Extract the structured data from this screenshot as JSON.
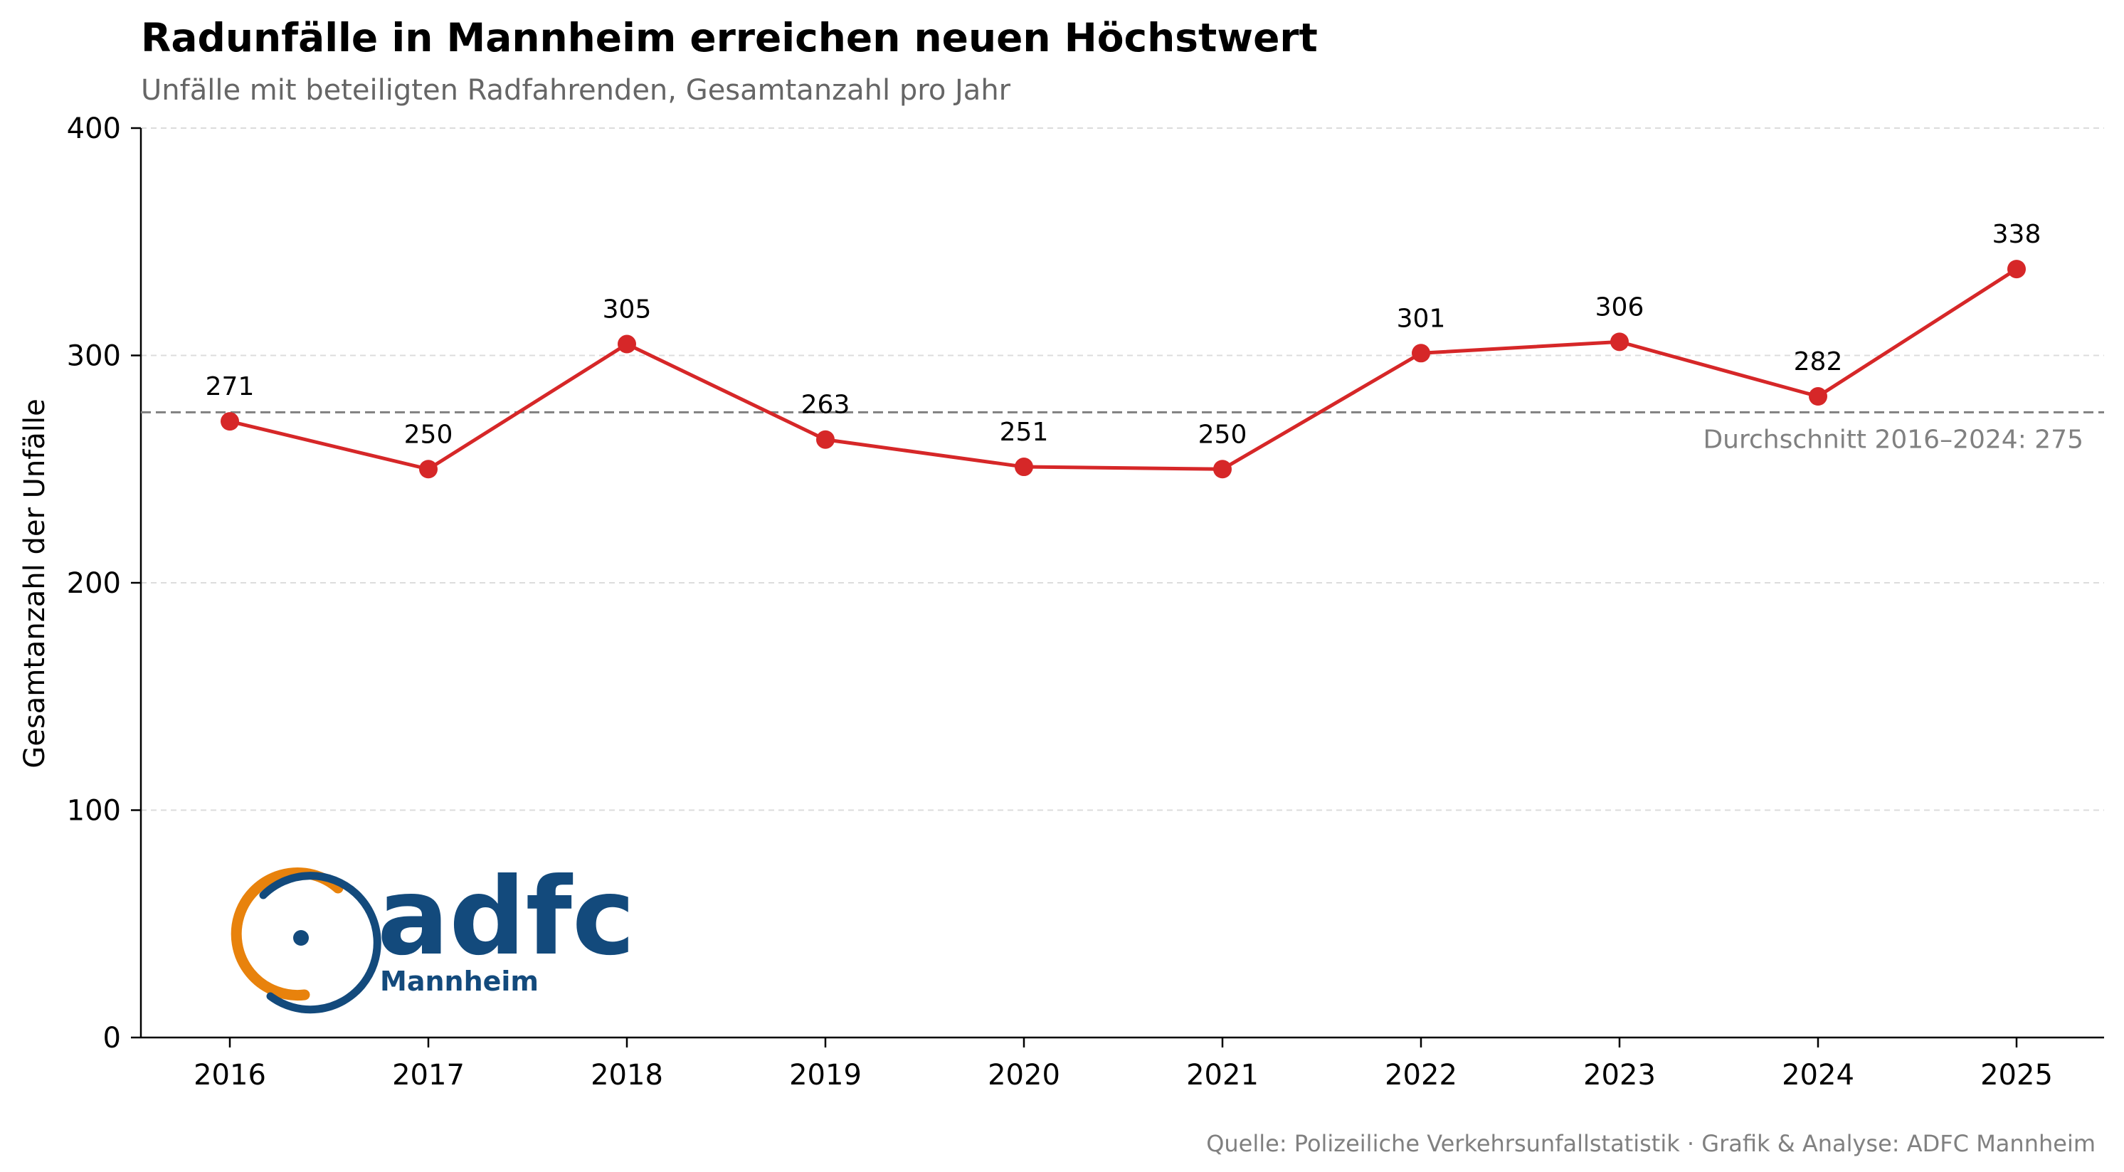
{
  "chart_data": {
    "type": "line",
    "title": "Radunfälle in Mannheim erreichen neuen Höchstwert",
    "subtitle": "Unfälle mit beteiligten Radfahrenden, Gesamtanzahl pro Jahr",
    "xlabel": "",
    "ylabel": "Gesamtanzahl der Unfälle",
    "x": [
      "2016",
      "2017",
      "2018",
      "2019",
      "2020",
      "2021",
      "2022",
      "2023",
      "2024",
      "2025"
    ],
    "values": [
      271,
      250,
      305,
      263,
      251,
      250,
      301,
      306,
      282,
      338
    ],
    "ylim": [
      0,
      400
    ],
    "yticks": [
      0,
      100,
      200,
      300,
      400
    ],
    "ytick_labels": [
      "0",
      "100",
      "200",
      "300",
      "400"
    ],
    "grid": "horizontal dashed",
    "series_color": "#d62728",
    "reference_line": {
      "value": 275,
      "label": "Durchschnitt 2016–2024: 275",
      "color": "#808080",
      "style": "dashed"
    },
    "source": "Quelle: Polizeiliche Verkehrsunfallstatistik · Grafik & Analyse: ADFC Mannheim"
  },
  "logo": {
    "word": "adfc",
    "sub": "Mannheim",
    "colors": {
      "blue": "#134a7c",
      "orange": "#e8820c"
    }
  }
}
